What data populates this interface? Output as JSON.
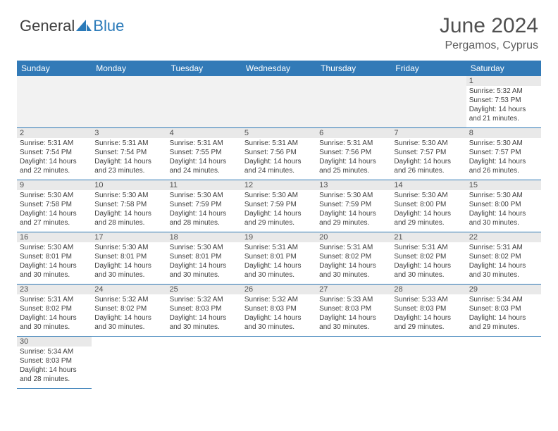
{
  "logo": {
    "general": "General",
    "blue": "Blue",
    "shape_color": "#2a7ab9"
  },
  "title": "June 2024",
  "location": "Pergamos, Cyprus",
  "header_bg": "#327ab7",
  "daynum_bg": "#e9e9e9",
  "border_color": "#2f79b5",
  "weekdays": [
    "Sunday",
    "Monday",
    "Tuesday",
    "Wednesday",
    "Thursday",
    "Friday",
    "Saturday"
  ],
  "leading_blank": 6,
  "trailing_blank": 6,
  "days": [
    {
      "n": "1",
      "sunrise": "5:32 AM",
      "sunset": "7:53 PM",
      "daylight": "14 hours and 21 minutes."
    },
    {
      "n": "2",
      "sunrise": "5:31 AM",
      "sunset": "7:54 PM",
      "daylight": "14 hours and 22 minutes."
    },
    {
      "n": "3",
      "sunrise": "5:31 AM",
      "sunset": "7:54 PM",
      "daylight": "14 hours and 23 minutes."
    },
    {
      "n": "4",
      "sunrise": "5:31 AM",
      "sunset": "7:55 PM",
      "daylight": "14 hours and 24 minutes."
    },
    {
      "n": "5",
      "sunrise": "5:31 AM",
      "sunset": "7:56 PM",
      "daylight": "14 hours and 24 minutes."
    },
    {
      "n": "6",
      "sunrise": "5:31 AM",
      "sunset": "7:56 PM",
      "daylight": "14 hours and 25 minutes."
    },
    {
      "n": "7",
      "sunrise": "5:30 AM",
      "sunset": "7:57 PM",
      "daylight": "14 hours and 26 minutes."
    },
    {
      "n": "8",
      "sunrise": "5:30 AM",
      "sunset": "7:57 PM",
      "daylight": "14 hours and 26 minutes."
    },
    {
      "n": "9",
      "sunrise": "5:30 AM",
      "sunset": "7:58 PM",
      "daylight": "14 hours and 27 minutes."
    },
    {
      "n": "10",
      "sunrise": "5:30 AM",
      "sunset": "7:58 PM",
      "daylight": "14 hours and 28 minutes."
    },
    {
      "n": "11",
      "sunrise": "5:30 AM",
      "sunset": "7:59 PM",
      "daylight": "14 hours and 28 minutes."
    },
    {
      "n": "12",
      "sunrise": "5:30 AM",
      "sunset": "7:59 PM",
      "daylight": "14 hours and 29 minutes."
    },
    {
      "n": "13",
      "sunrise": "5:30 AM",
      "sunset": "7:59 PM",
      "daylight": "14 hours and 29 minutes."
    },
    {
      "n": "14",
      "sunrise": "5:30 AM",
      "sunset": "8:00 PM",
      "daylight": "14 hours and 29 minutes."
    },
    {
      "n": "15",
      "sunrise": "5:30 AM",
      "sunset": "8:00 PM",
      "daylight": "14 hours and 30 minutes."
    },
    {
      "n": "16",
      "sunrise": "5:30 AM",
      "sunset": "8:01 PM",
      "daylight": "14 hours and 30 minutes."
    },
    {
      "n": "17",
      "sunrise": "5:30 AM",
      "sunset": "8:01 PM",
      "daylight": "14 hours and 30 minutes."
    },
    {
      "n": "18",
      "sunrise": "5:30 AM",
      "sunset": "8:01 PM",
      "daylight": "14 hours and 30 minutes."
    },
    {
      "n": "19",
      "sunrise": "5:31 AM",
      "sunset": "8:01 PM",
      "daylight": "14 hours and 30 minutes."
    },
    {
      "n": "20",
      "sunrise": "5:31 AM",
      "sunset": "8:02 PM",
      "daylight": "14 hours and 30 minutes."
    },
    {
      "n": "21",
      "sunrise": "5:31 AM",
      "sunset": "8:02 PM",
      "daylight": "14 hours and 30 minutes."
    },
    {
      "n": "22",
      "sunrise": "5:31 AM",
      "sunset": "8:02 PM",
      "daylight": "14 hours and 30 minutes."
    },
    {
      "n": "23",
      "sunrise": "5:31 AM",
      "sunset": "8:02 PM",
      "daylight": "14 hours and 30 minutes."
    },
    {
      "n": "24",
      "sunrise": "5:32 AM",
      "sunset": "8:02 PM",
      "daylight": "14 hours and 30 minutes."
    },
    {
      "n": "25",
      "sunrise": "5:32 AM",
      "sunset": "8:03 PM",
      "daylight": "14 hours and 30 minutes."
    },
    {
      "n": "26",
      "sunrise": "5:32 AM",
      "sunset": "8:03 PM",
      "daylight": "14 hours and 30 minutes."
    },
    {
      "n": "27",
      "sunrise": "5:33 AM",
      "sunset": "8:03 PM",
      "daylight": "14 hours and 30 minutes."
    },
    {
      "n": "28",
      "sunrise": "5:33 AM",
      "sunset": "8:03 PM",
      "daylight": "14 hours and 29 minutes."
    },
    {
      "n": "29",
      "sunrise": "5:34 AM",
      "sunset": "8:03 PM",
      "daylight": "14 hours and 29 minutes."
    },
    {
      "n": "30",
      "sunrise": "5:34 AM",
      "sunset": "8:03 PM",
      "daylight": "14 hours and 28 minutes."
    }
  ],
  "labels": {
    "sunrise": "Sunrise: ",
    "sunset": "Sunset: ",
    "daylight": "Daylight: "
  }
}
